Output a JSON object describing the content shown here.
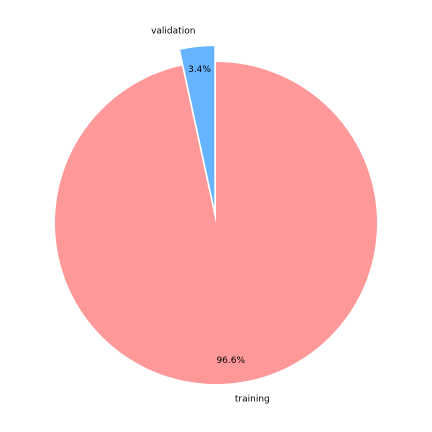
{
  "chart_data": {
    "type": "pie",
    "title": "",
    "labels": [
      "validation",
      "training"
    ],
    "values": [
      3.4,
      96.6
    ],
    "value_labels": [
      "3.4%",
      "96.6%"
    ],
    "colors": [
      "#66b3ff",
      "#ff9999"
    ],
    "exploded": [
      true,
      false
    ],
    "start_angle_deg": 90,
    "direction": "counterclockwise-matplotlib"
  }
}
